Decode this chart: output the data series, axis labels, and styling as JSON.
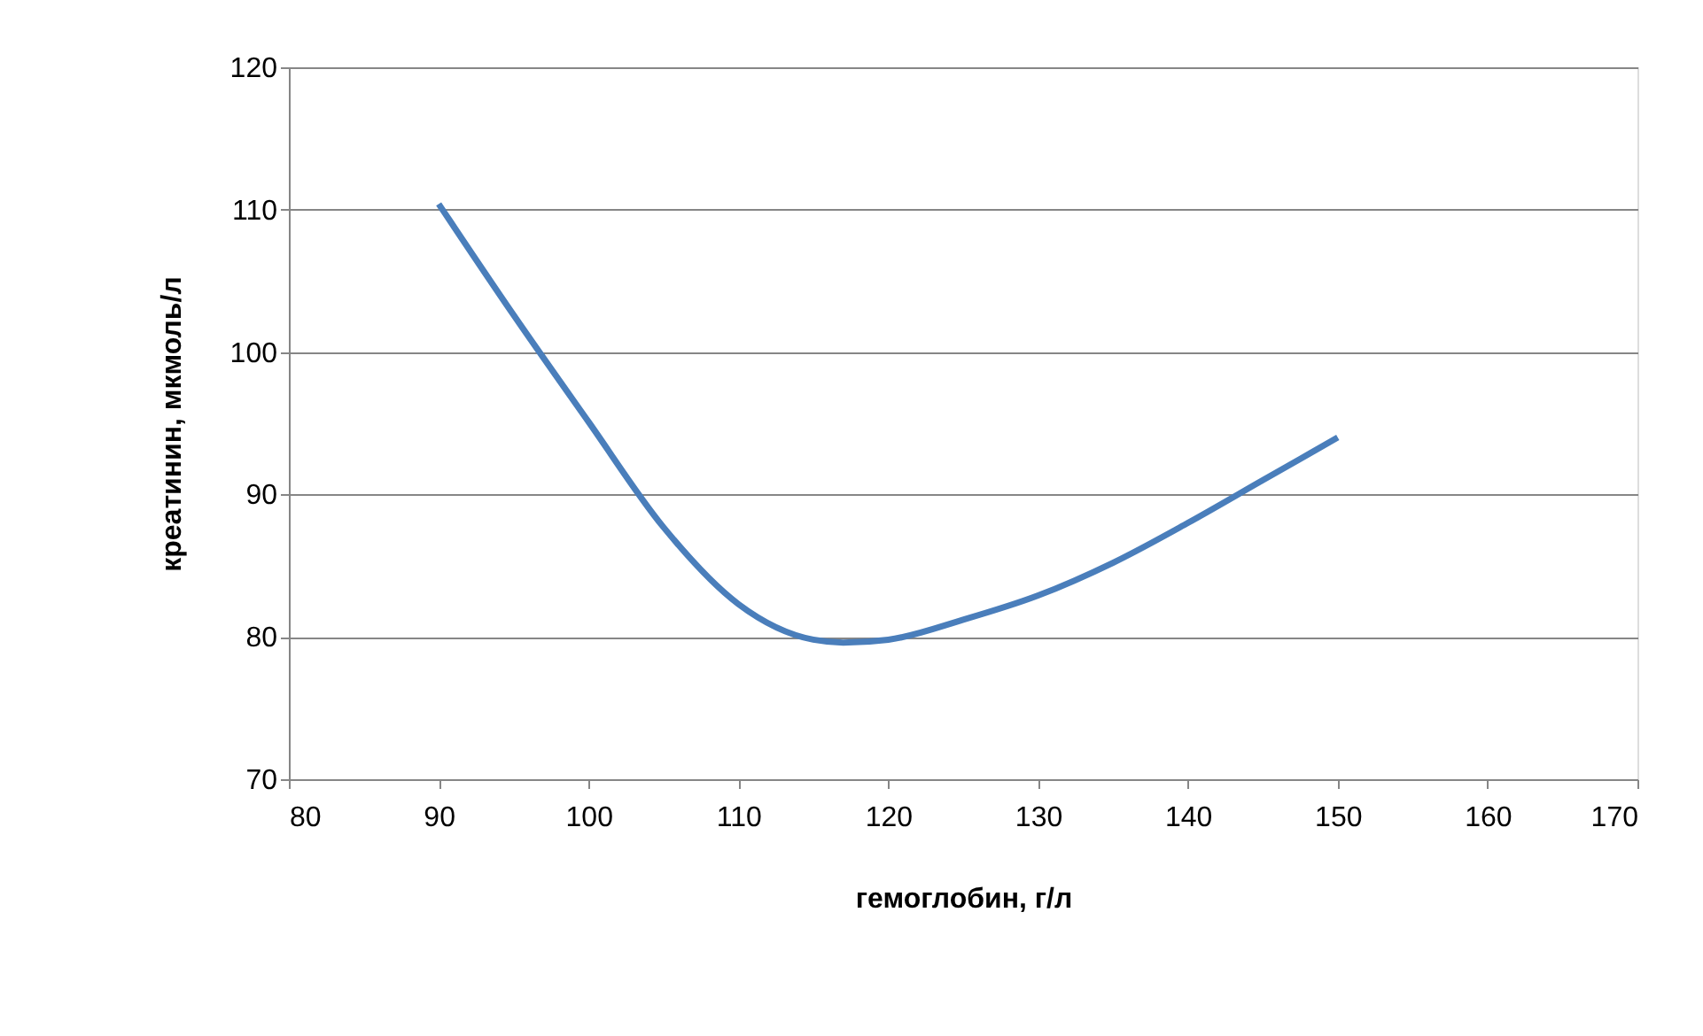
{
  "chart_data": {
    "type": "line",
    "xlabel": "гемоглобин, г/л",
    "ylabel": "креатинин, мкмоль/л",
    "x": [
      90,
      95,
      100,
      105,
      110,
      115,
      117,
      120,
      125,
      130,
      135,
      140,
      145,
      150
    ],
    "series": [
      {
        "color": "#4a7ebb",
        "values": [
          110.4,
          102.6,
          95.1,
          87.7,
          82.3,
          79.8,
          79.6,
          79.8,
          81.2,
          82.9,
          85.2,
          88.0,
          91.0,
          94.0
        ]
      }
    ],
    "xlim": [
      80,
      170
    ],
    "xticks": [
      80,
      90,
      100,
      110,
      120,
      130,
      140,
      150,
      160,
      170
    ],
    "ylim": [
      70,
      120
    ],
    "yticks": [
      70,
      80,
      90,
      100,
      110,
      120
    ],
    "grid": "y",
    "marker": "none",
    "line_style": "solid"
  }
}
